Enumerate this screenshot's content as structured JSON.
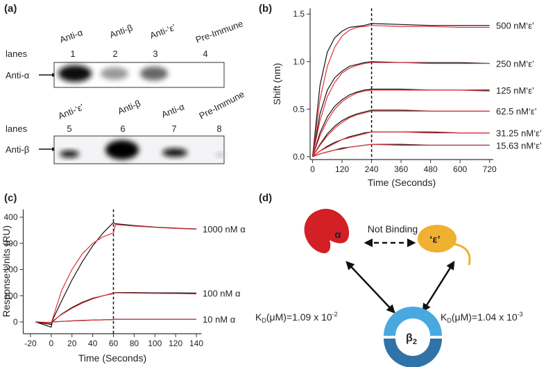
{
  "panel_a": {
    "panel_label": "(a)",
    "top": {
      "lane_labels": [
        "Anti-α",
        "Anti-β",
        "Anti-‘ε’",
        "Pre-Immune"
      ],
      "lanes_label": "lanes",
      "lanes": [
        1,
        2,
        3,
        4
      ],
      "row_label": "Anti-α"
    },
    "bottom": {
      "lane_labels": [
        "Anti-‘ε’",
        "Anti-β",
        "Anti-α",
        "Pre-Immune"
      ],
      "lanes_label": "lanes",
      "lanes": [
        5,
        6,
        7,
        8
      ],
      "row_label": "Anti-β"
    }
  },
  "chart_data": [
    {
      "type": "line",
      "panel_label": "(b)",
      "x_label": "Time (Seconds)",
      "y_label": "Shift (nm)",
      "x": [
        0,
        30,
        60,
        90,
        120,
        150,
        180,
        210,
        240,
        360,
        480,
        600,
        720
      ],
      "xlim": [
        -10,
        735
      ],
      "xticks": [
        0,
        120,
        240,
        360,
        480,
        600,
        720
      ],
      "ylim": [
        -0.03,
        1.56
      ],
      "yticks": [
        {
          "value": 0,
          "label": "0.0"
        },
        {
          "value": 0.5,
          "label": "0.5"
        },
        {
          "value": 1,
          "label": "1.0"
        },
        {
          "value": 1.5,
          "label": "1.5"
        }
      ],
      "vline": 240,
      "series": [
        {
          "name": "500 nM‘ε’",
          "color": "#111111",
          "values": [
            0,
            0.75,
            1.1,
            1.25,
            1.32,
            1.36,
            1.37,
            1.38,
            1.4,
            1.39,
            1.38,
            1.38,
            1.38
          ],
          "fit_color": "#e0303a",
          "fit": [
            0,
            0.6,
            0.95,
            1.15,
            1.27,
            1.33,
            1.36,
            1.37,
            1.38,
            1.37,
            1.37,
            1.36,
            1.36
          ]
        },
        {
          "name": "250 nM‘ε’",
          "color": "#111111",
          "values": [
            0,
            0.45,
            0.7,
            0.83,
            0.9,
            0.95,
            0.97,
            0.99,
            1.0,
            0.99,
            0.99,
            0.99,
            0.98
          ],
          "fit_color": "#e0303a",
          "fit": [
            0,
            0.38,
            0.63,
            0.78,
            0.88,
            0.93,
            0.96,
            0.98,
            0.99,
            0.99,
            0.98,
            0.98,
            0.98
          ]
        },
        {
          "name": "125 nM‘ε’",
          "color": "#111111",
          "values": [
            0,
            0.25,
            0.42,
            0.53,
            0.6,
            0.65,
            0.68,
            0.7,
            0.71,
            0.71,
            0.7,
            0.7,
            0.7
          ],
          "fit_color": "#e0303a",
          "fit": [
            0,
            0.22,
            0.38,
            0.5,
            0.58,
            0.63,
            0.67,
            0.69,
            0.7,
            0.7,
            0.7,
            0.7,
            0.69
          ]
        },
        {
          "name": "62.5 nM‘ε’",
          "color": "#111111",
          "values": [
            0,
            0.13,
            0.24,
            0.32,
            0.38,
            0.42,
            0.45,
            0.47,
            0.49,
            0.49,
            0.48,
            0.48,
            0.48
          ],
          "fit_color": "#e0303a",
          "fit": [
            0,
            0.12,
            0.22,
            0.3,
            0.36,
            0.41,
            0.44,
            0.46,
            0.48,
            0.48,
            0.48,
            0.48,
            0.48
          ]
        },
        {
          "name": "31.25 nM‘ε’",
          "color": "#111111",
          "values": [
            0,
            0.06,
            0.11,
            0.15,
            0.18,
            0.21,
            0.23,
            0.25,
            0.26,
            0.26,
            0.26,
            0.25,
            0.25
          ],
          "fit_color": "#e0303a",
          "fit": [
            0,
            0.06,
            0.1,
            0.14,
            0.18,
            0.2,
            0.22,
            0.24,
            0.26,
            0.26,
            0.25,
            0.25,
            0.25
          ]
        },
        {
          "name": "15.63 nM‘ε’",
          "color": "#111111",
          "values": [
            0,
            0.03,
            0.05,
            0.07,
            0.09,
            0.1,
            0.11,
            0.12,
            0.13,
            0.13,
            0.12,
            0.12,
            0.12
          ],
          "fit_color": "#e0303a",
          "fit": [
            0,
            0.03,
            0.05,
            0.07,
            0.08,
            0.1,
            0.11,
            0.12,
            0.13,
            0.12,
            0.12,
            0.12,
            0.12
          ]
        }
      ]
    },
    {
      "type": "line",
      "panel_label": "(c)",
      "x_label": "Time (Seconds)",
      "y_label": "Response Units (RU)",
      "x": [
        -15,
        0,
        1,
        10,
        20,
        30,
        40,
        50,
        60,
        62,
        80,
        100,
        120,
        140
      ],
      "xlim": [
        -27,
        145
      ],
      "xticks": [
        -20,
        0,
        20,
        40,
        60,
        80,
        100,
        120,
        140
      ],
      "ylim": [
        -45,
        430
      ],
      "yticks": [
        0,
        100,
        200,
        300,
        400
      ],
      "vline": 60,
      "series": [
        {
          "name": "1000 nM  α",
          "color": "#111111",
          "values": [
            0,
            -5,
            5,
            80,
            160,
            230,
            290,
            340,
            380,
            375,
            368,
            362,
            358,
            355
          ],
          "fit_color": "#e0303a",
          "fit": [
            0,
            -5,
            8,
            120,
            200,
            260,
            300,
            325,
            340,
            372,
            366,
            361,
            357,
            354
          ]
        },
        {
          "name": "100 nM  α",
          "color": "#111111",
          "values": [
            0,
            -20,
            0,
            30,
            55,
            75,
            90,
            100,
            110,
            112,
            112,
            111,
            111,
            110
          ],
          "fit_color": "#e0303a",
          "fit": [
            0,
            -5,
            3,
            28,
            52,
            72,
            88,
            100,
            108,
            111,
            110,
            109,
            108,
            107
          ]
        },
        {
          "name": "10 nM  α",
          "color": "#111111",
          "values": [
            0,
            -10,
            0,
            2,
            4,
            6,
            7,
            8,
            9,
            10,
            10,
            10,
            10,
            10
          ],
          "fit_color": "#e0303a",
          "fit": [
            0,
            -2,
            0,
            2,
            4,
            5,
            7,
            8,
            9,
            10,
            10,
            10,
            10,
            10
          ]
        }
      ]
    }
  ],
  "panel_d": {
    "panel_label": "(d)",
    "alpha": "α",
    "epsilon": "‘ε’",
    "beta": {
      "symbol": "β",
      "sub": "2"
    },
    "not_binding": "Not Binding",
    "kd_left": {
      "k": "K",
      "sub": "D",
      "mid": "(μM)=1.09 x 10",
      "sup": "-2"
    },
    "kd_right": {
      "k": "K",
      "sub": "D",
      "mid": "(μM)=1.04 x 10",
      "sup": "-3"
    }
  }
}
